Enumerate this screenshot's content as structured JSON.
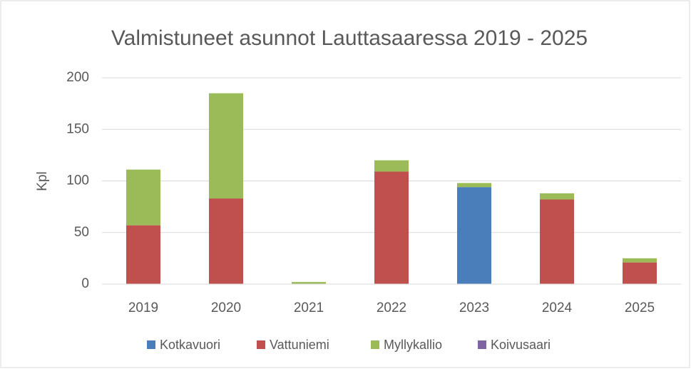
{
  "chart_data": {
    "type": "bar",
    "stacked": true,
    "title": "Valmistuneet asunnot Lauttasaaressa 2019 - 2025",
    "y_label": "Kpl",
    "categories": [
      "2019",
      "2020",
      "2021",
      "2022",
      "2023",
      "2024",
      "2025"
    ],
    "series": [
      {
        "name": "Kotkavuori",
        "color": "#4a7ebb",
        "values": [
          0,
          0,
          0,
          0,
          94,
          0,
          0
        ]
      },
      {
        "name": "Vattuniemi",
        "color": "#c0504d",
        "values": [
          57,
          83,
          0,
          109,
          0,
          82,
          21
        ]
      },
      {
        "name": "Myllykallio",
        "color": "#9bbb59",
        "values": [
          54,
          102,
          2,
          11,
          4,
          6,
          4
        ]
      },
      {
        "name": "Koivusaari",
        "color": "#8064a2",
        "values": [
          0,
          0,
          0,
          0,
          0,
          0,
          0
        ]
      }
    ],
    "ylim": [
      0,
      200
    ],
    "yticks": [
      0,
      50,
      100,
      150,
      200
    ],
    "grid": true,
    "legend": "bottom"
  }
}
